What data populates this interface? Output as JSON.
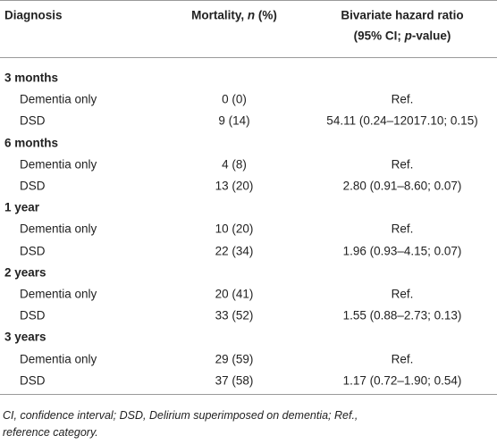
{
  "table": {
    "header": [
      [
        "Diagnosis"
      ],
      [
        "Mortality, ",
        "n",
        " (%)"
      ],
      [
        "Bivariate hazard ratio"
      ],
      [
        "(95% CI; ",
        "p",
        "-value)"
      ]
    ],
    "groups": [
      {
        "label": "3 months",
        "rows": [
          [
            "Dementia only",
            "0 (0)",
            "Ref."
          ],
          [
            "DSD",
            "9 (14)",
            "54.11 (0.24–12017.10; 0.15)"
          ]
        ]
      },
      {
        "label": "6 months",
        "rows": [
          [
            "Dementia only",
            "4 (8)",
            "Ref."
          ],
          [
            "DSD",
            "13 (20)",
            "2.80 (0.91–8.60; 0.07)"
          ]
        ]
      },
      {
        "label": "1 year",
        "rows": [
          [
            "Dementia only",
            "10 (20)",
            "Ref."
          ],
          [
            "DSD",
            "22 (34)",
            "1.96 (0.93–4.15; 0.07)"
          ]
        ]
      },
      {
        "label": "2 years",
        "rows": [
          [
            "Dementia only",
            "20 (41)",
            "Ref."
          ],
          [
            "DSD",
            "33 (52)",
            "1.55 (0.88–2.73; 0.13)"
          ]
        ]
      },
      {
        "label": "3 years",
        "rows": [
          [
            "Dementia only",
            "29 (59)",
            "Ref."
          ],
          [
            "DSD",
            "37 (58)",
            "1.17 (0.72–1.90; 0.54)"
          ]
        ]
      }
    ],
    "footnote": [
      "CI, confidence interval; DSD, Delirium superimposed on dementia; Ref.,",
      "reference category."
    ]
  }
}
